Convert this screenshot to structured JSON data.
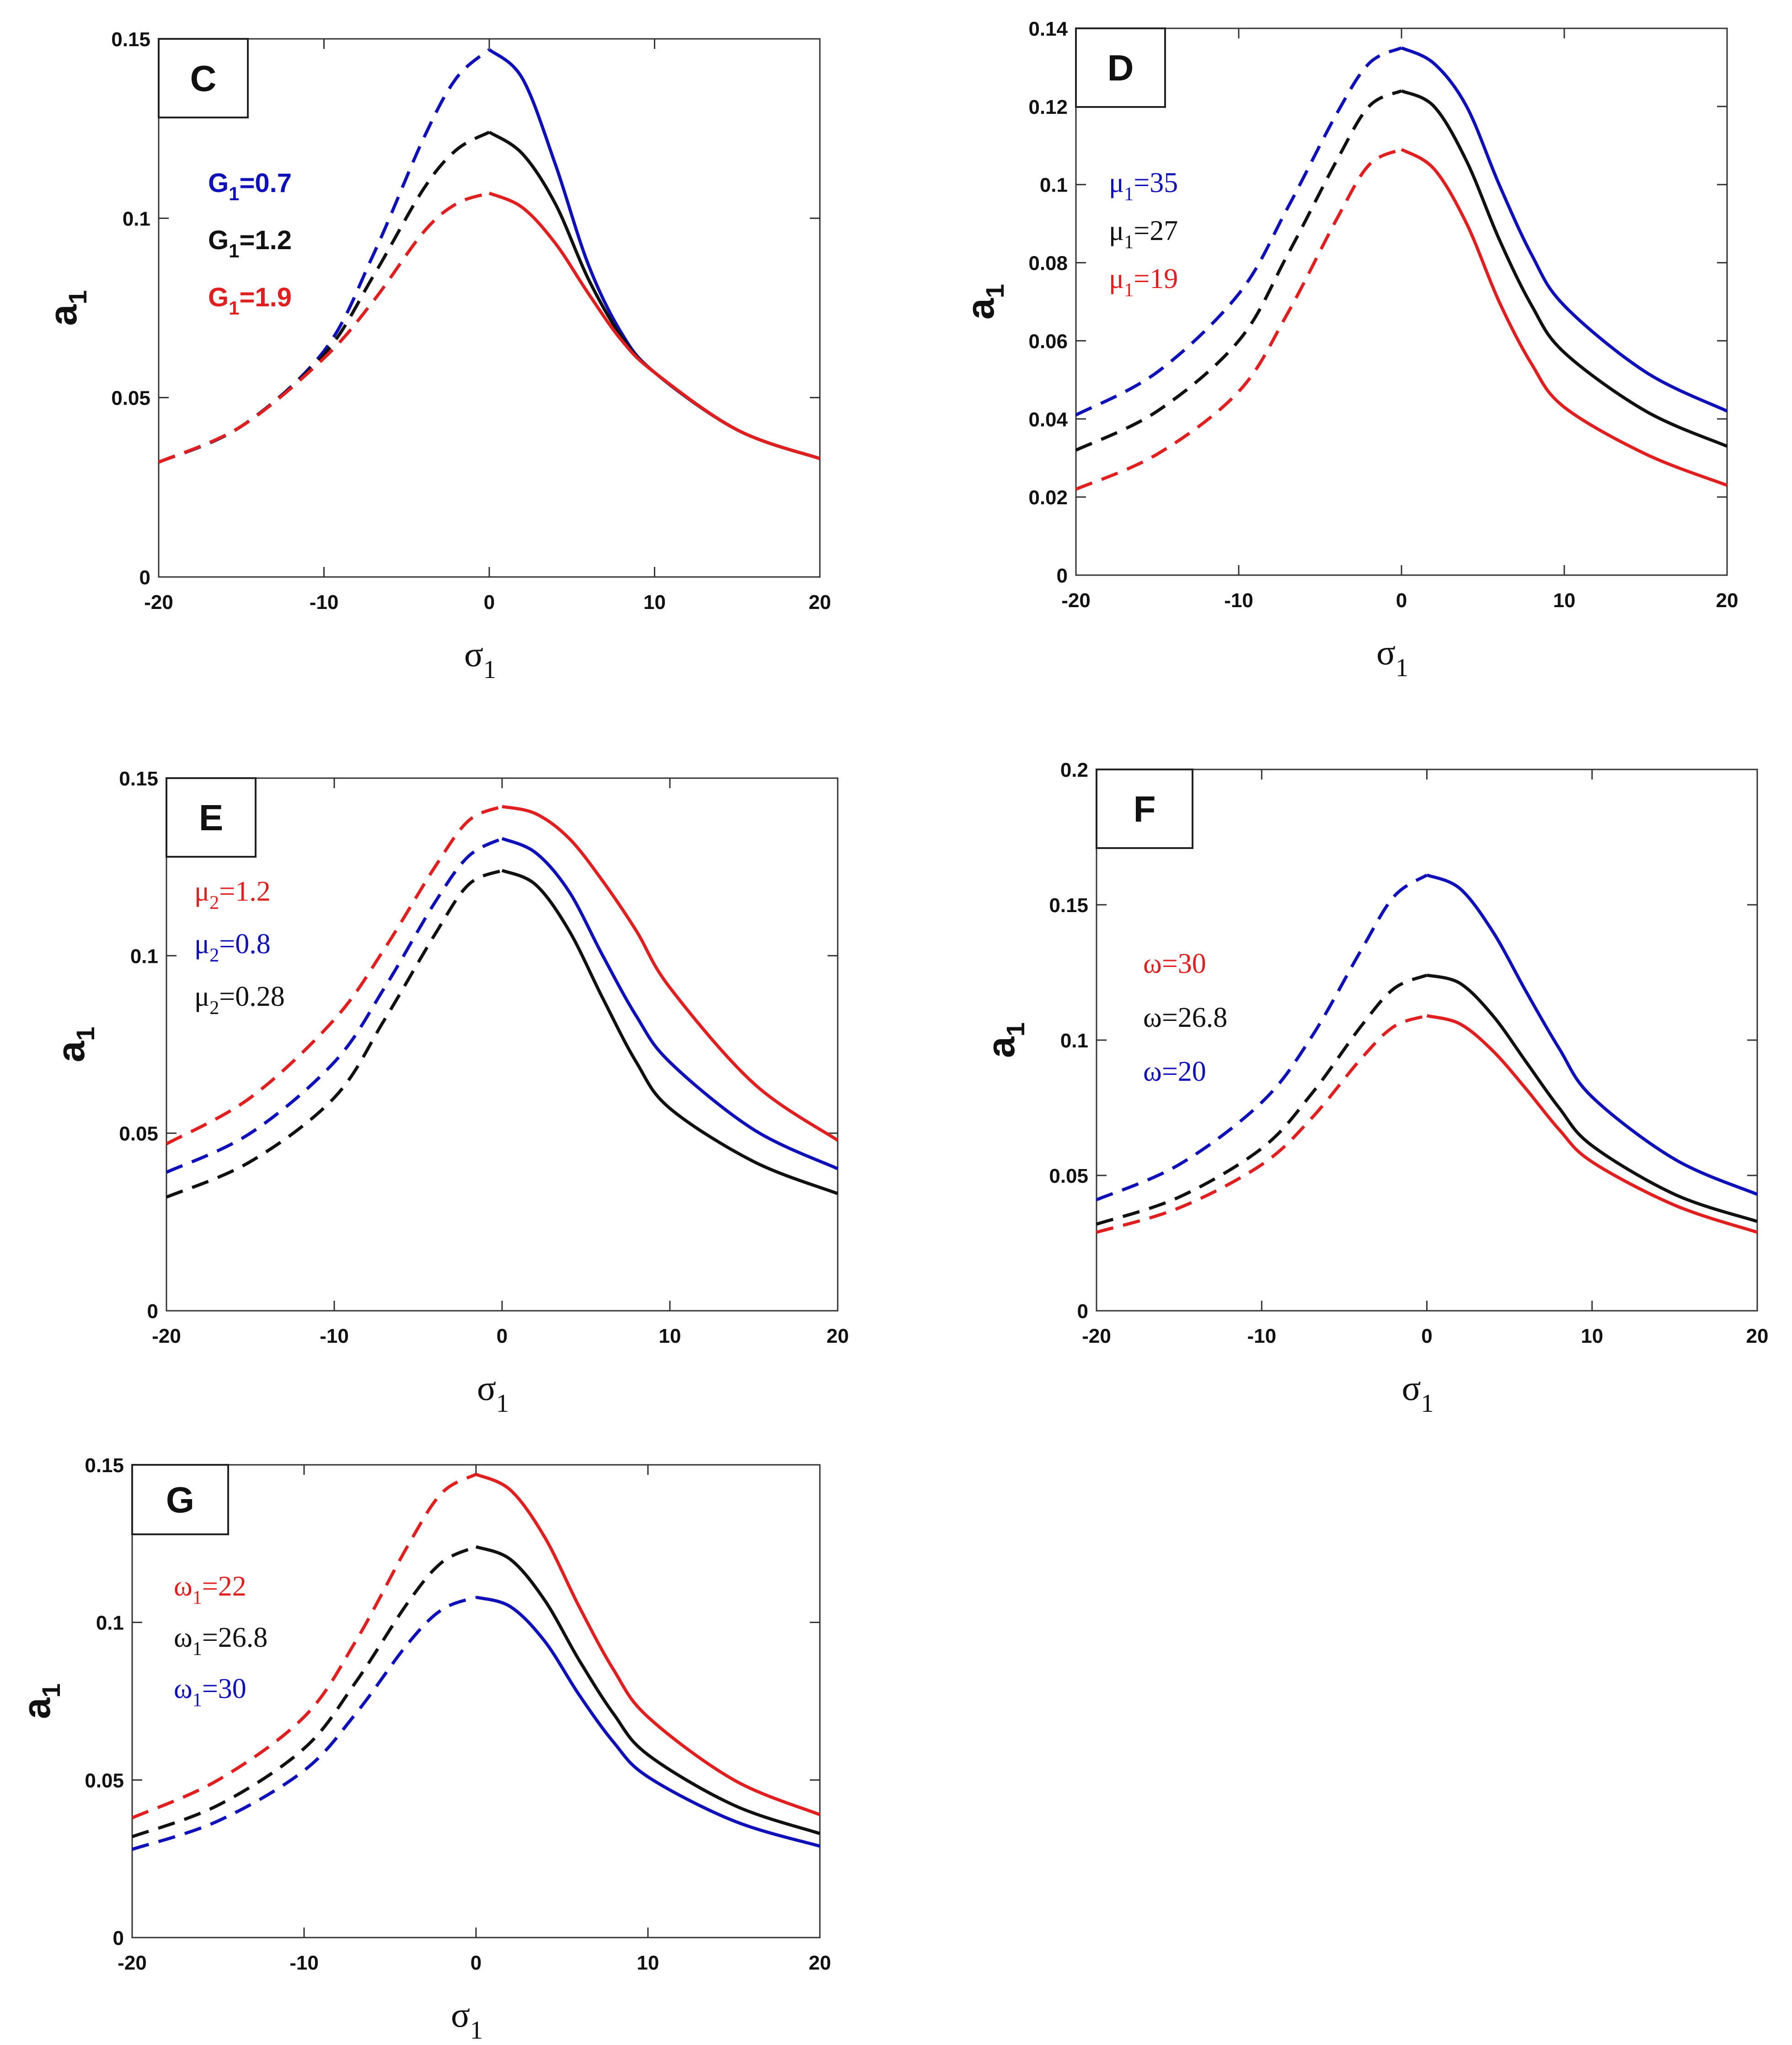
{
  "chart_data": [
    {
      "panel": "C",
      "type": "line",
      "title": "C",
      "xlabel": "σ1",
      "ylabel": "a1",
      "xlim": [
        -20,
        20
      ],
      "ylim": [
        0,
        0.15
      ],
      "xticks": [
        "-20",
        "-10",
        "0",
        "10",
        "20"
      ],
      "yticks": [
        "0",
        "0.05",
        "0.1",
        "0.15"
      ],
      "legend_style": "sans",
      "series": [
        {
          "name": "G1=0.7",
          "color": "#1010b8",
          "legend_base": "G",
          "legend_sub": "1",
          "legend_val": "=0.7",
          "peak": 0.147,
          "tail": 0.032,
          "center": 0,
          "split": 0.5,
          "points": [
            [
              -20,
              0.032
            ],
            [
              -15,
              0.042
            ],
            [
              -10,
              0.063
            ],
            [
              -7,
              0.09
            ],
            [
              -4,
              0.122
            ],
            [
              -2,
              0.139
            ],
            [
              0,
              0.147
            ],
            [
              2,
              0.139
            ],
            [
              4,
              0.115
            ],
            [
              6,
              0.087
            ],
            [
              8,
              0.068
            ],
            [
              10,
              0.057
            ],
            [
              15,
              0.041
            ],
            [
              20,
              0.033
            ]
          ]
        },
        {
          "name": "G1=1.2",
          "color": "#111111",
          "legend_base": "G",
          "legend_sub": "1",
          "legend_val": "=1.2",
          "peak": 0.124,
          "tail": 0.032,
          "center": 0,
          "split": 0.5,
          "points": [
            [
              -20,
              0.032
            ],
            [
              -15,
              0.042
            ],
            [
              -10,
              0.062
            ],
            [
              -7,
              0.084
            ],
            [
              -4,
              0.108
            ],
            [
              -2,
              0.119
            ],
            [
              0,
              0.124
            ],
            [
              2,
              0.118
            ],
            [
              4,
              0.104
            ],
            [
              6,
              0.083
            ],
            [
              8,
              0.067
            ],
            [
              10,
              0.057
            ],
            [
              15,
              0.041
            ],
            [
              20,
              0.033
            ]
          ]
        },
        {
          "name": "G1=1.9",
          "color": "#e02020",
          "legend_base": "G",
          "legend_sub": "1",
          "legend_val": "=1.9",
          "peak": 0.107,
          "tail": 0.032,
          "center": 0,
          "split": 0.5,
          "points": [
            [
              -20,
              0.032
            ],
            [
              -15,
              0.042
            ],
            [
              -10,
              0.061
            ],
            [
              -7,
              0.077
            ],
            [
              -4,
              0.096
            ],
            [
              -2,
              0.104
            ],
            [
              0,
              0.107
            ],
            [
              2,
              0.103
            ],
            [
              4,
              0.093
            ],
            [
              6,
              0.079
            ],
            [
              8,
              0.066
            ],
            [
              10,
              0.057
            ],
            [
              15,
              0.041
            ],
            [
              20,
              0.033
            ]
          ]
        }
      ]
    },
    {
      "panel": "D",
      "type": "line",
      "title": "D",
      "xlabel": "σ1",
      "ylabel": "a1",
      "xlim": [
        -20,
        20
      ],
      "ylim": [
        0,
        0.14
      ],
      "xticks": [
        "-20",
        "-10",
        "0",
        "10",
        "20"
      ],
      "yticks": [
        "0",
        "0.02",
        "0.04",
        "0.06",
        "0.08",
        "0.1",
        "0.12",
        "0.14"
      ],
      "legend_style": "serif",
      "series": [
        {
          "name": "μ1=35",
          "color": "#1010b8",
          "legend_base": "μ",
          "legend_sub": "1",
          "legend_val": "=35",
          "points": [
            [
              -20,
              0.041
            ],
            [
              -15,
              0.052
            ],
            [
              -10,
              0.072
            ],
            [
              -7,
              0.094
            ],
            [
              -4,
              0.118
            ],
            [
              -2,
              0.131
            ],
            [
              0,
              0.135
            ],
            [
              2,
              0.131
            ],
            [
              4,
              0.12
            ],
            [
              6,
              0.1
            ],
            [
              8,
              0.082
            ],
            [
              10,
              0.069
            ],
            [
              15,
              0.052
            ],
            [
              20,
              0.042
            ]
          ]
        },
        {
          "name": "μ1=27",
          "color": "#111111",
          "legend_base": "μ",
          "legend_sub": "1",
          "legend_val": "=27",
          "points": [
            [
              -20,
              0.032
            ],
            [
              -15,
              0.042
            ],
            [
              -10,
              0.06
            ],
            [
              -7,
              0.082
            ],
            [
              -4,
              0.106
            ],
            [
              -2,
              0.12
            ],
            [
              0,
              0.124
            ],
            [
              2,
              0.12
            ],
            [
              4,
              0.106
            ],
            [
              6,
              0.086
            ],
            [
              8,
              0.069
            ],
            [
              10,
              0.057
            ],
            [
              15,
              0.042
            ],
            [
              20,
              0.033
            ]
          ]
        },
        {
          "name": "μ1=19",
          "color": "#e02020",
          "legend_base": "μ",
          "legend_sub": "1",
          "legend_val": "=19",
          "points": [
            [
              -20,
              0.022
            ],
            [
              -15,
              0.031
            ],
            [
              -10,
              0.047
            ],
            [
              -7,
              0.067
            ],
            [
              -4,
              0.091
            ],
            [
              -2,
              0.105
            ],
            [
              0,
              0.109
            ],
            [
              2,
              0.104
            ],
            [
              4,
              0.09
            ],
            [
              6,
              0.07
            ],
            [
              8,
              0.054
            ],
            [
              10,
              0.043
            ],
            [
              15,
              0.031
            ],
            [
              20,
              0.023
            ]
          ]
        }
      ]
    },
    {
      "panel": "E",
      "type": "line",
      "title": "E",
      "xlabel": "σ1",
      "ylabel": "a1",
      "xlim": [
        -20,
        20
      ],
      "ylim": [
        0,
        0.15
      ],
      "xticks": [
        "-20",
        "-10",
        "0",
        "10",
        "20"
      ],
      "yticks": [
        "0",
        "0.05",
        "0.1",
        "0.15"
      ],
      "legend_style": "serif",
      "series": [
        {
          "name": "μ2=1.2",
          "color": "#e02020",
          "legend_base": "μ",
          "legend_sub": "2",
          "legend_val": "=1.2",
          "points": [
            [
              -20,
              0.047
            ],
            [
              -15,
              0.06
            ],
            [
              -10,
              0.082
            ],
            [
              -7,
              0.102
            ],
            [
              -4,
              0.125
            ],
            [
              -2,
              0.138
            ],
            [
              0,
              0.142
            ],
            [
              2,
              0.14
            ],
            [
              4,
              0.133
            ],
            [
              6,
              0.121
            ],
            [
              8,
              0.107
            ],
            [
              10,
              0.091
            ],
            [
              15,
              0.064
            ],
            [
              20,
              0.048
            ]
          ]
        },
        {
          "name": "μ2=0.8",
          "color": "#1010b8",
          "legend_base": "μ",
          "legend_sub": "2",
          "legend_val": "=0.8",
          "points": [
            [
              -20,
              0.039
            ],
            [
              -15,
              0.05
            ],
            [
              -10,
              0.07
            ],
            [
              -7,
              0.091
            ],
            [
              -4,
              0.115
            ],
            [
              -2,
              0.128
            ],
            [
              0,
              0.133
            ],
            [
              2,
              0.129
            ],
            [
              4,
              0.118
            ],
            [
              6,
              0.1
            ],
            [
              8,
              0.083
            ],
            [
              10,
              0.07
            ],
            [
              15,
              0.051
            ],
            [
              20,
              0.04
            ]
          ]
        },
        {
          "name": "μ2=0.28",
          "color": "#111111",
          "legend_base": "μ",
          "legend_sub": "2",
          "legend_val": "=0.28",
          "points": [
            [
              -20,
              0.032
            ],
            [
              -15,
              0.042
            ],
            [
              -10,
              0.06
            ],
            [
              -7,
              0.082
            ],
            [
              -4,
              0.106
            ],
            [
              -2,
              0.12
            ],
            [
              0,
              0.124
            ],
            [
              2,
              0.12
            ],
            [
              4,
              0.107
            ],
            [
              6,
              0.088
            ],
            [
              8,
              0.07
            ],
            [
              10,
              0.057
            ],
            [
              15,
              0.042
            ],
            [
              20,
              0.033
            ]
          ]
        }
      ]
    },
    {
      "panel": "F",
      "type": "line",
      "title": "F",
      "xlabel": "σ1",
      "ylabel": "a1",
      "xlim": [
        -20,
        20
      ],
      "ylim": [
        0,
        0.2
      ],
      "xticks": [
        "-20",
        "-10",
        "0",
        "10",
        "20"
      ],
      "yticks": [
        "0",
        "0.05",
        "0.1",
        "0.15",
        "0.2"
      ],
      "legend_style": "serif",
      "series": [
        {
          "name": "ω=30",
          "color": "#e02020",
          "legend_base": "ω",
          "legend_sub": "",
          "legend_val": "=30",
          "points": [
            [
              -20,
              0.029
            ],
            [
              -15,
              0.038
            ],
            [
              -10,
              0.054
            ],
            [
              -7,
              0.071
            ],
            [
              -4,
              0.093
            ],
            [
              -2,
              0.105
            ],
            [
              0,
              0.109
            ],
            [
              2,
              0.106
            ],
            [
              4,
              0.096
            ],
            [
              6,
              0.082
            ],
            [
              8,
              0.067
            ],
            [
              10,
              0.055
            ],
            [
              15,
              0.039
            ],
            [
              20,
              0.029
            ]
          ]
        },
        {
          "name": "ω=26.8",
          "color": "#111111",
          "legend_base": "ω",
          "legend_sub": "",
          "legend_val": "=26.8",
          "points": [
            [
              -20,
              0.032
            ],
            [
              -15,
              0.042
            ],
            [
              -10,
              0.06
            ],
            [
              -7,
              0.08
            ],
            [
              -4,
              0.105
            ],
            [
              -2,
              0.119
            ],
            [
              0,
              0.124
            ],
            [
              2,
              0.121
            ],
            [
              4,
              0.109
            ],
            [
              6,
              0.092
            ],
            [
              8,
              0.075
            ],
            [
              10,
              0.061
            ],
            [
              15,
              0.043
            ],
            [
              20,
              0.033
            ]
          ]
        },
        {
          "name": "ω=20",
          "color": "#1010b8",
          "legend_base": "ω",
          "legend_sub": "",
          "legend_val": "=20",
          "points": [
            [
              -20,
              0.041
            ],
            [
              -15,
              0.054
            ],
            [
              -10,
              0.077
            ],
            [
              -7,
              0.101
            ],
            [
              -4,
              0.133
            ],
            [
              -2,
              0.153
            ],
            [
              0,
              0.161
            ],
            [
              2,
              0.156
            ],
            [
              4,
              0.14
            ],
            [
              6,
              0.118
            ],
            [
              8,
              0.097
            ],
            [
              10,
              0.079
            ],
            [
              15,
              0.056
            ],
            [
              20,
              0.043
            ]
          ]
        }
      ]
    },
    {
      "panel": "G",
      "type": "line",
      "title": "G",
      "xlabel": "σ1",
      "ylabel": "a1",
      "xlim": [
        -20,
        20
      ],
      "ylim": [
        0,
        0.15
      ],
      "xticks": [
        "-20",
        "-10",
        "0",
        "10",
        "20"
      ],
      "yticks": [
        "0",
        "0.05",
        "0.1",
        "0.15"
      ],
      "legend_style": "serif",
      "series": [
        {
          "name": "ω1=22",
          "color": "#e02020",
          "legend_base": "ω",
          "legend_sub": "1",
          "legend_val": "=22",
          "points": [
            [
              -20,
              0.038
            ],
            [
              -15,
              0.05
            ],
            [
              -10,
              0.07
            ],
            [
              -7,
              0.094
            ],
            [
              -4,
              0.124
            ],
            [
              -2,
              0.141
            ],
            [
              0,
              0.147
            ],
            [
              2,
              0.142
            ],
            [
              4,
              0.127
            ],
            [
              6,
              0.105
            ],
            [
              8,
              0.085
            ],
            [
              10,
              0.07
            ],
            [
              15,
              0.05
            ],
            [
              20,
              0.039
            ]
          ]
        },
        {
          "name": "ω1=26.8",
          "color": "#111111",
          "legend_base": "ω",
          "legend_sub": "1",
          "legend_val": "=26.8",
          "points": [
            [
              -20,
              0.032
            ],
            [
              -15,
              0.042
            ],
            [
              -10,
              0.06
            ],
            [
              -7,
              0.081
            ],
            [
              -4,
              0.106
            ],
            [
              -2,
              0.119
            ],
            [
              0,
              0.124
            ],
            [
              2,
              0.12
            ],
            [
              4,
              0.107
            ],
            [
              6,
              0.088
            ],
            [
              8,
              0.071
            ],
            [
              10,
              0.058
            ],
            [
              15,
              0.042
            ],
            [
              20,
              0.033
            ]
          ]
        },
        {
          "name": "ω1=30",
          "color": "#1010b8",
          "legend_base": "ω",
          "legend_sub": "1",
          "legend_val": "=30",
          "points": [
            [
              -20,
              0.028
            ],
            [
              -15,
              0.037
            ],
            [
              -10,
              0.053
            ],
            [
              -7,
              0.071
            ],
            [
              -4,
              0.093
            ],
            [
              -2,
              0.104
            ],
            [
              0,
              0.108
            ],
            [
              2,
              0.105
            ],
            [
              4,
              0.094
            ],
            [
              6,
              0.077
            ],
            [
              8,
              0.062
            ],
            [
              10,
              0.051
            ],
            [
              15,
              0.037
            ],
            [
              20,
              0.029
            ]
          ]
        }
      ]
    }
  ]
}
